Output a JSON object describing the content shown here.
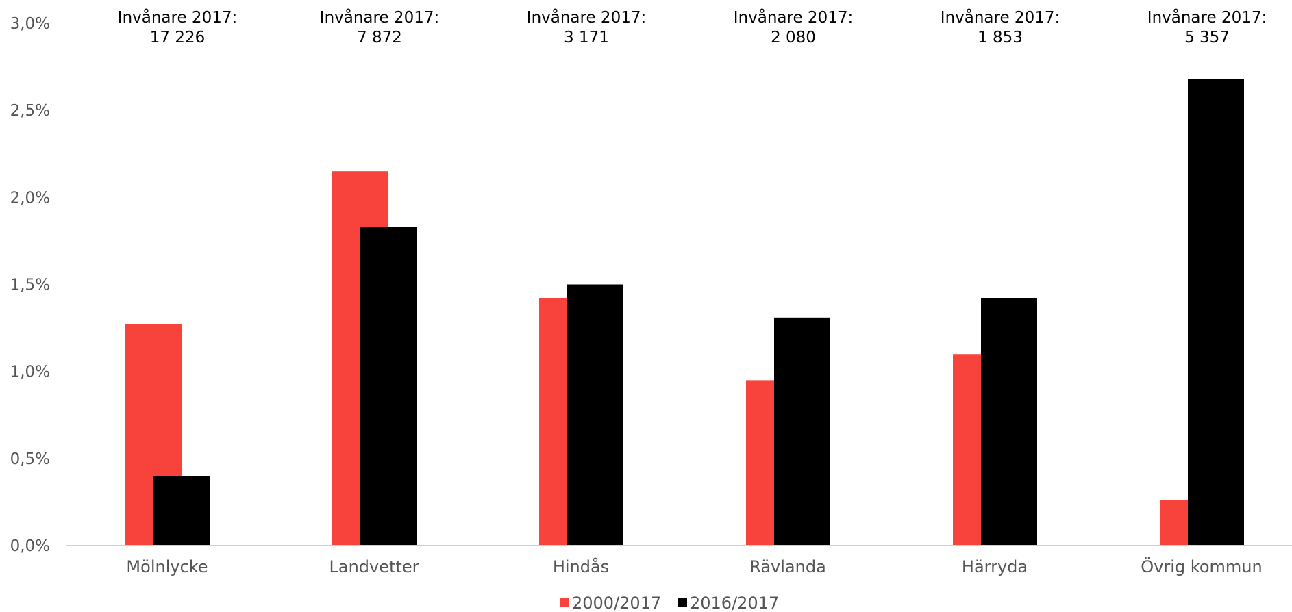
{
  "chart_data": {
    "type": "bar",
    "title": "",
    "xlabel": "",
    "ylabel": "",
    "categories": [
      "Mölnlycke",
      "Landvetter",
      "Hindås",
      "Rävlanda",
      "Härryda",
      "Övrig kommun"
    ],
    "series": [
      {
        "name": "2000/2017",
        "color": "#f8423c",
        "values": [
          1.27,
          2.15,
          1.42,
          0.95,
          1.1,
          0.26
        ]
      },
      {
        "name": "2016/2017",
        "color": "#000000",
        "values": [
          0.4,
          1.83,
          1.5,
          1.31,
          1.42,
          2.68
        ]
      }
    ],
    "ylim": [
      0,
      3.0
    ],
    "yticks": [
      0,
      0.5,
      1.0,
      1.5,
      2.0,
      2.5,
      3.0
    ],
    "ytick_labels": [
      "0,0%",
      "0,5%",
      "1,0%",
      "1,5%",
      "2,0%",
      "2,5%",
      "3,0%"
    ],
    "annotations": [
      {
        "line1": "Invånare 2017:",
        "line2": "17 226"
      },
      {
        "line1": "Invånare 2017:",
        "line2": "7 872"
      },
      {
        "line1": "Invånare 2017:",
        "line2": "3 171"
      },
      {
        "line1": "Invånare 2017:",
        "line2": "2 080"
      },
      {
        "line1": "Invånare 2017:",
        "line2": "1 853"
      },
      {
        "line1": "Invånare 2017:",
        "line2": "5 357"
      }
    ],
    "grid": false,
    "legend_position": "bottom",
    "axis_color": "#d0d0d0"
  }
}
